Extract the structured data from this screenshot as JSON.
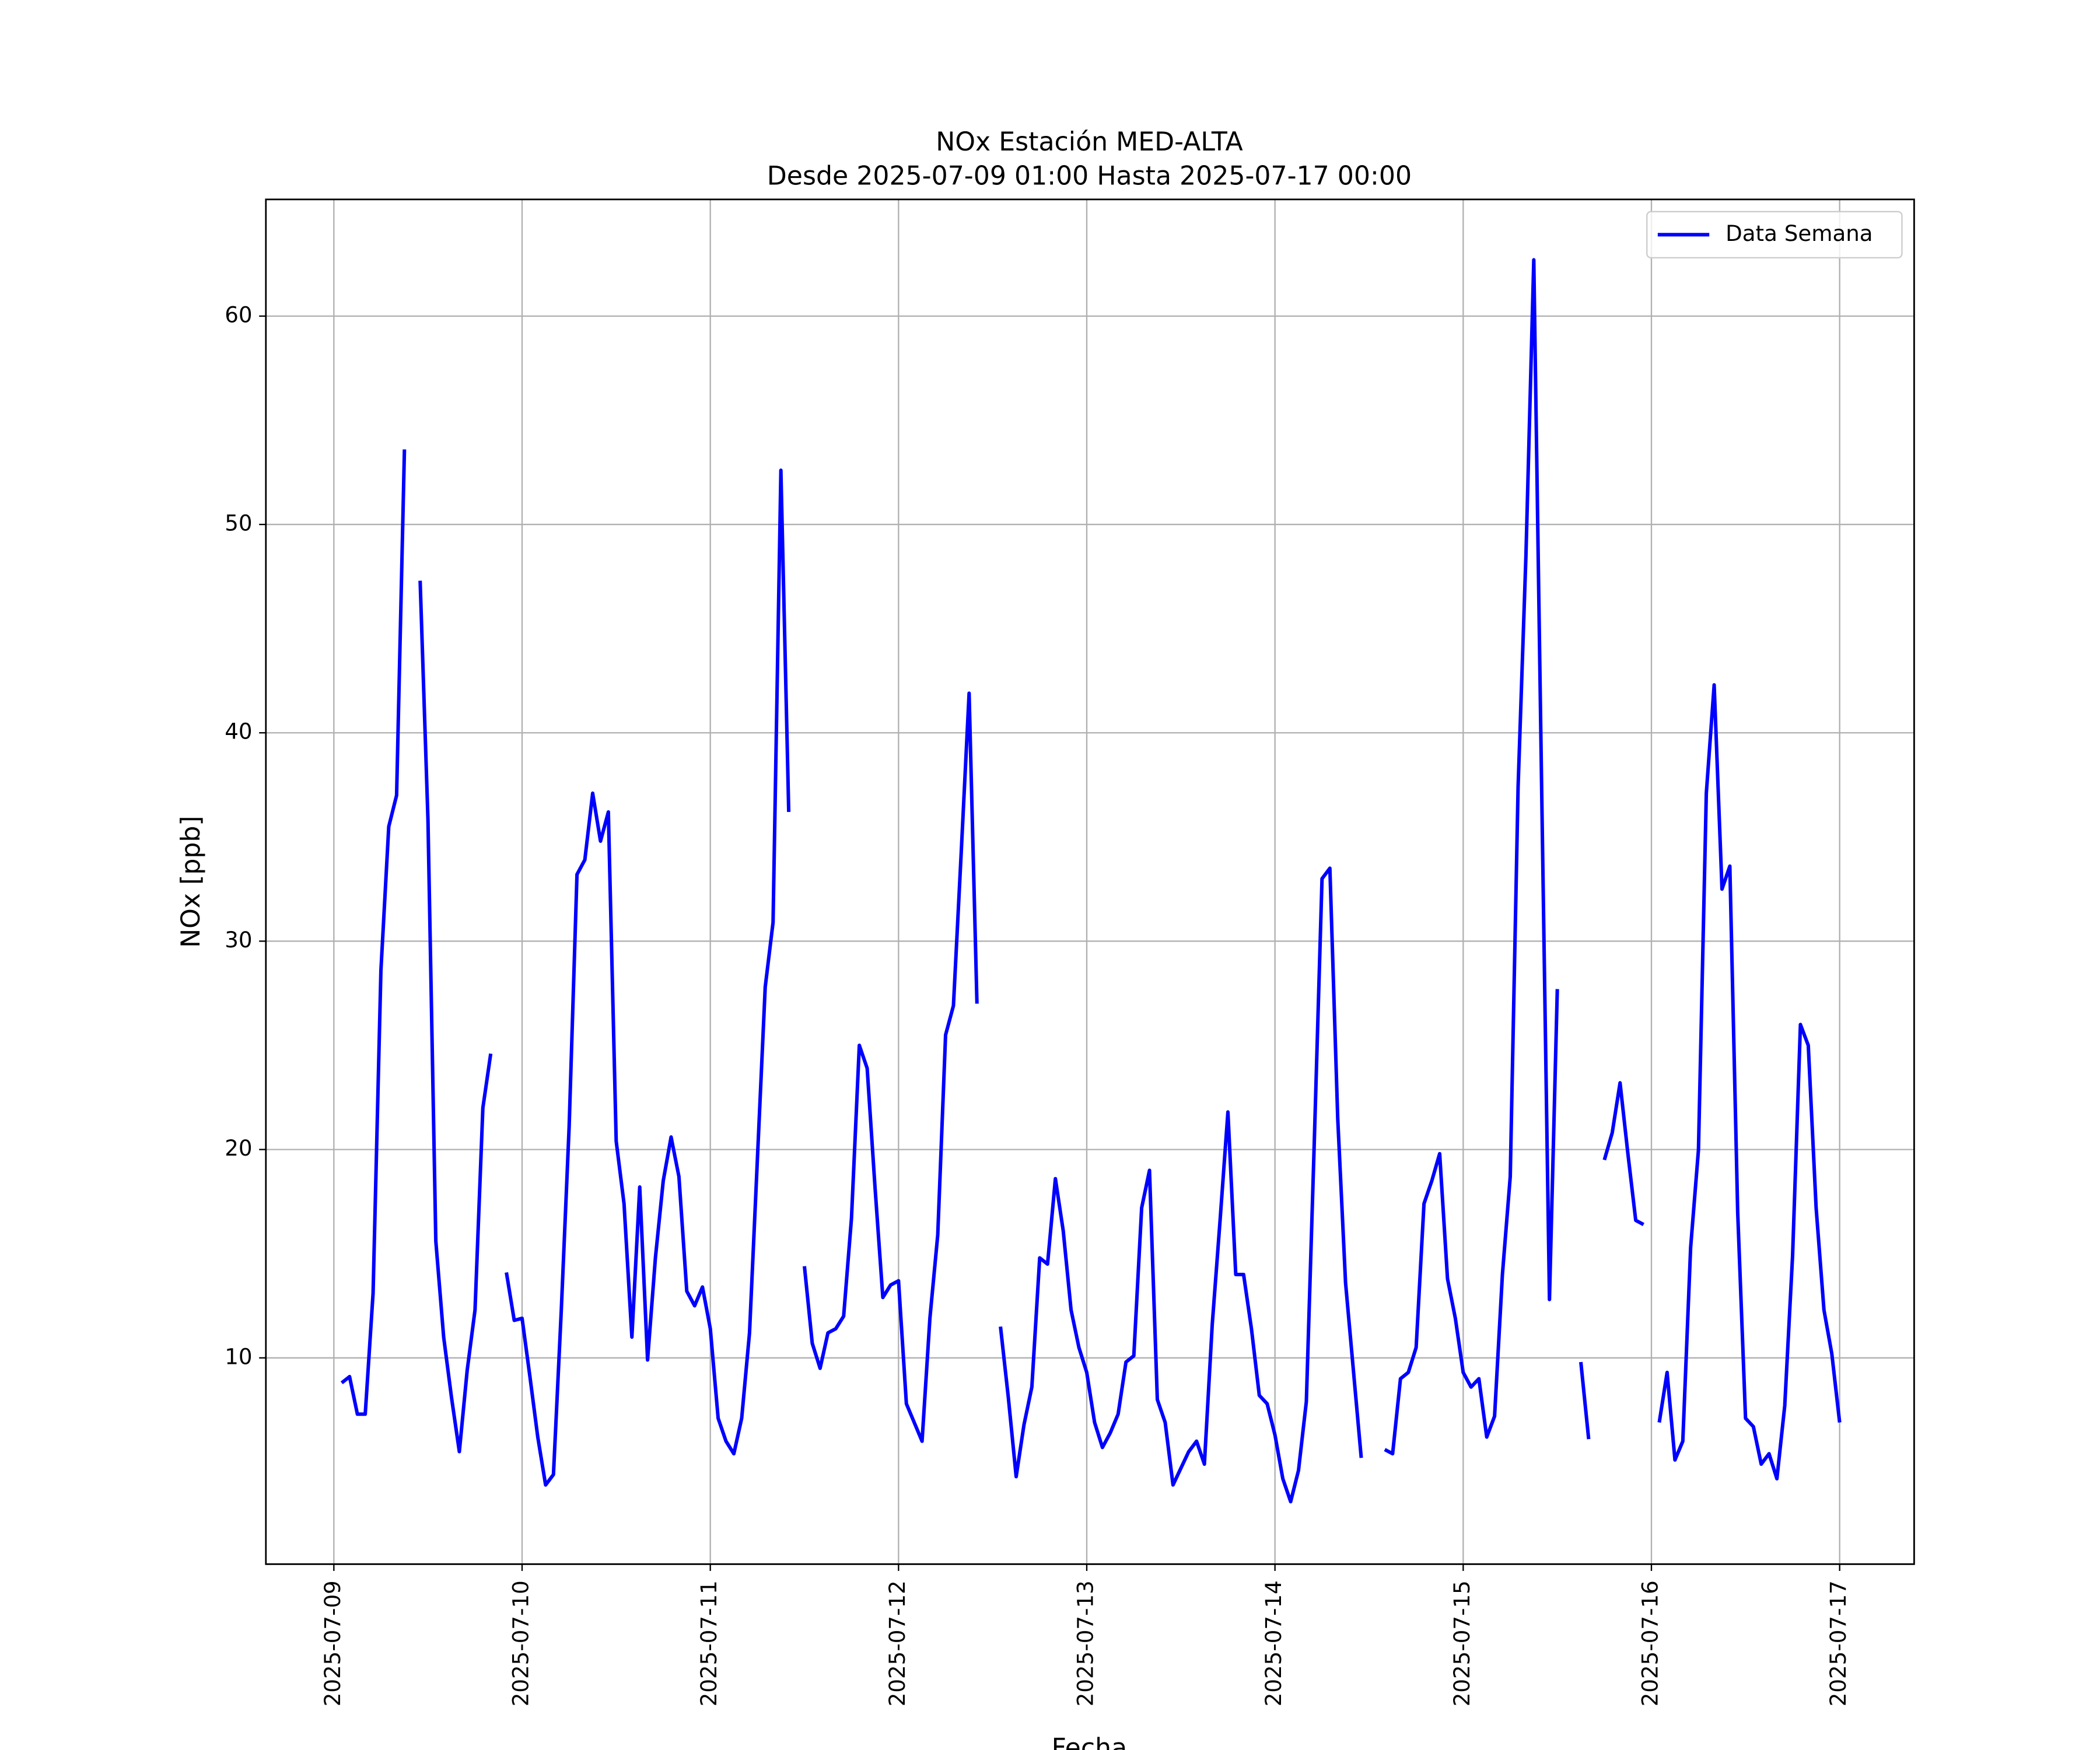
{
  "chart_data": {
    "type": "line",
    "title": "NOx Estación MED-ALTA",
    "subtitle": "Desde 2025-07-09 01:00 Hasta 2025-07-17 00:00",
    "x_label": "Fecha",
    "y_label": "NOx [ppb]",
    "legend": "upper right",
    "grid": true,
    "xlim": [
      "2025-07-08 15:20",
      "2025-07-17 09:30"
    ],
    "xticks": [
      "2025-07-09",
      "2025-07-10",
      "2025-07-11",
      "2025-07-12",
      "2025-07-13",
      "2025-07-14",
      "2025-07-15",
      "2025-07-16",
      "2025-07-17"
    ],
    "ylim": [
      0.1,
      65.6
    ],
    "yticks": [
      10,
      20,
      30,
      40,
      50,
      60
    ],
    "x": [
      "2025-07-09 01:00",
      "2025-07-09 02:00",
      "2025-07-09 03:00",
      "2025-07-09 04:00",
      "2025-07-09 05:00",
      "2025-07-09 06:00",
      "2025-07-09 07:00",
      "2025-07-09 08:00",
      "2025-07-09 09:00",
      "2025-07-09 10:00",
      "2025-07-09 11:00",
      "2025-07-09 12:00",
      "2025-07-09 13:00",
      "2025-07-09 14:00",
      "2025-07-09 15:00",
      "2025-07-09 16:00",
      "2025-07-09 17:00",
      "2025-07-09 18:00",
      "2025-07-09 19:00",
      "2025-07-09 20:00",
      "2025-07-09 21:00",
      "2025-07-09 22:00",
      "2025-07-09 23:00",
      "2025-07-10 00:00",
      "2025-07-10 01:00",
      "2025-07-10 02:00",
      "2025-07-10 03:00",
      "2025-07-10 04:00",
      "2025-07-10 05:00",
      "2025-07-10 06:00",
      "2025-07-10 07:00",
      "2025-07-10 08:00",
      "2025-07-10 09:00",
      "2025-07-10 10:00",
      "2025-07-10 11:00",
      "2025-07-10 12:00",
      "2025-07-10 13:00",
      "2025-07-10 14:00",
      "2025-07-10 15:00",
      "2025-07-10 16:00",
      "2025-07-10 17:00",
      "2025-07-10 18:00",
      "2025-07-10 19:00",
      "2025-07-10 20:00",
      "2025-07-10 21:00",
      "2025-07-10 22:00",
      "2025-07-10 23:00",
      "2025-07-11 00:00",
      "2025-07-11 01:00",
      "2025-07-11 02:00",
      "2025-07-11 03:00",
      "2025-07-11 04:00",
      "2025-07-11 05:00",
      "2025-07-11 06:00",
      "2025-07-11 07:00",
      "2025-07-11 08:00",
      "2025-07-11 09:00",
      "2025-07-11 10:00",
      "2025-07-11 11:00",
      "2025-07-11 12:00",
      "2025-07-11 13:00",
      "2025-07-11 14:00",
      "2025-07-11 15:00",
      "2025-07-11 16:00",
      "2025-07-11 17:00",
      "2025-07-11 18:00",
      "2025-07-11 19:00",
      "2025-07-11 20:00",
      "2025-07-11 21:00",
      "2025-07-11 22:00",
      "2025-07-11 23:00",
      "2025-07-12 00:00",
      "2025-07-12 01:00",
      "2025-07-12 02:00",
      "2025-07-12 03:00",
      "2025-07-12 04:00",
      "2025-07-12 05:00",
      "2025-07-12 06:00",
      "2025-07-12 07:00",
      "2025-07-12 08:00",
      "2025-07-12 09:00",
      "2025-07-12 10:00",
      "2025-07-12 11:00",
      "2025-07-12 12:00",
      "2025-07-12 13:00",
      "2025-07-12 14:00",
      "2025-07-12 15:00",
      "2025-07-12 16:00",
      "2025-07-12 17:00",
      "2025-07-12 18:00",
      "2025-07-12 19:00",
      "2025-07-12 20:00",
      "2025-07-12 21:00",
      "2025-07-12 22:00",
      "2025-07-12 23:00",
      "2025-07-13 00:00",
      "2025-07-13 01:00",
      "2025-07-13 02:00",
      "2025-07-13 03:00",
      "2025-07-13 04:00",
      "2025-07-13 05:00",
      "2025-07-13 06:00",
      "2025-07-13 07:00",
      "2025-07-13 08:00",
      "2025-07-13 09:00",
      "2025-07-13 10:00",
      "2025-07-13 11:00",
      "2025-07-13 12:00",
      "2025-07-13 13:00",
      "2025-07-13 14:00",
      "2025-07-13 15:00",
      "2025-07-13 16:00",
      "2025-07-13 17:00",
      "2025-07-13 18:00",
      "2025-07-13 19:00",
      "2025-07-13 20:00",
      "2025-07-13 21:00",
      "2025-07-13 22:00",
      "2025-07-13 23:00",
      "2025-07-14 00:00",
      "2025-07-14 01:00",
      "2025-07-14 02:00",
      "2025-07-14 03:00",
      "2025-07-14 04:00",
      "2025-07-14 05:00",
      "2025-07-14 06:00",
      "2025-07-14 07:00",
      "2025-07-14 08:00",
      "2025-07-14 09:00",
      "2025-07-14 10:00",
      "2025-07-14 11:00",
      "2025-07-14 12:00",
      "2025-07-14 13:00",
      "2025-07-14 14:00",
      "2025-07-14 15:00",
      "2025-07-14 16:00",
      "2025-07-14 17:00",
      "2025-07-14 18:00",
      "2025-07-14 19:00",
      "2025-07-14 20:00",
      "2025-07-14 21:00",
      "2025-07-14 22:00",
      "2025-07-14 23:00",
      "2025-07-15 00:00",
      "2025-07-15 01:00",
      "2025-07-15 02:00",
      "2025-07-15 03:00",
      "2025-07-15 04:00",
      "2025-07-15 05:00",
      "2025-07-15 06:00",
      "2025-07-15 07:00",
      "2025-07-15 08:00",
      "2025-07-15 09:00",
      "2025-07-15 10:00",
      "2025-07-15 11:00",
      "2025-07-15 12:00",
      "2025-07-15 13:00",
      "2025-07-15 14:00",
      "2025-07-15 15:00",
      "2025-07-15 16:00",
      "2025-07-15 17:00",
      "2025-07-15 18:00",
      "2025-07-15 19:00",
      "2025-07-15 20:00",
      "2025-07-15 21:00",
      "2025-07-15 22:00",
      "2025-07-15 23:00",
      "2025-07-16 00:00",
      "2025-07-16 01:00",
      "2025-07-16 02:00",
      "2025-07-16 03:00",
      "2025-07-16 04:00",
      "2025-07-16 05:00",
      "2025-07-16 06:00",
      "2025-07-16 07:00",
      "2025-07-16 08:00",
      "2025-07-16 09:00",
      "2025-07-16 10:00",
      "2025-07-16 11:00",
      "2025-07-16 12:00",
      "2025-07-16 13:00",
      "2025-07-16 14:00",
      "2025-07-16 15:00",
      "2025-07-16 16:00",
      "2025-07-16 17:00",
      "2025-07-16 18:00",
      "2025-07-16 19:00",
      "2025-07-16 20:00",
      "2025-07-16 21:00",
      "2025-07-16 22:00",
      "2025-07-16 23:00",
      "2025-07-17 00:00"
    ],
    "series": [
      {
        "name": "Data Semana",
        "color": "#0000ff",
        "values": [
          8.8,
          9.1,
          7.3,
          7.3,
          13.1,
          28.6,
          35.5,
          37.0,
          53.6,
          null,
          47.3,
          35.8,
          15.6,
          11.0,
          8.1,
          5.5,
          9.4,
          12.3,
          22.0,
          24.6,
          null,
          14.1,
          11.8,
          11.9,
          9.1,
          6.2,
          3.9,
          4.4,
          12.3,
          21.1,
          33.2,
          33.9,
          37.1,
          34.8,
          36.2,
          20.4,
          17.4,
          11.0,
          18.2,
          9.9,
          14.8,
          18.5,
          20.6,
          18.7,
          13.2,
          12.5,
          13.4,
          11.4,
          7.1,
          6.0,
          5.4,
          7.1,
          11.2,
          19.5,
          27.8,
          30.9,
          52.6,
          36.2,
          null,
          14.4,
          10.7,
          9.5,
          11.2,
          11.4,
          12.0,
          16.7,
          25.0,
          23.9,
          18.2,
          12.9,
          13.5,
          13.7,
          7.8,
          6.9,
          6.0,
          11.9,
          15.9,
          25.5,
          26.9,
          34.3,
          41.9,
          27.0,
          null,
          null,
          11.5,
          8.1,
          4.3,
          6.8,
          8.6,
          14.8,
          14.5,
          18.6,
          16.1,
          12.3,
          10.5,
          9.3,
          6.9,
          5.7,
          6.4,
          7.3,
          9.8,
          10.1,
          17.2,
          19.0,
          8.0,
          6.9,
          3.9,
          4.7,
          5.5,
          6.0,
          4.9,
          11.6,
          16.6,
          21.8,
          14.0,
          14.0,
          11.4,
          8.2,
          7.8,
          6.3,
          4.2,
          3.1,
          4.6,
          7.9,
          20.2,
          33.0,
          33.5,
          21.5,
          13.6,
          9.4,
          5.2,
          null,
          null,
          5.6,
          5.4,
          9.0,
          9.3,
          10.5,
          17.4,
          18.5,
          19.8,
          13.8,
          11.9,
          9.3,
          8.6,
          9.0,
          6.2,
          7.2,
          14.0,
          18.7,
          37.4,
          48.5,
          62.7,
          37.4,
          12.8,
          27.7,
          null,
          null,
          9.8,
          6.1,
          null,
          19.5,
          20.8,
          23.2,
          19.8,
          16.6,
          16.4,
          null,
          6.9,
          9.3,
          5.1,
          6.0,
          15.3,
          20.0,
          37.1,
          42.3,
          32.5,
          33.6,
          17.0,
          7.1,
          6.7,
          4.9,
          5.4,
          4.2,
          7.7,
          14.9,
          26.0,
          25.0,
          17.2,
          12.3,
          10.2,
          6.9
        ]
      }
    ]
  }
}
